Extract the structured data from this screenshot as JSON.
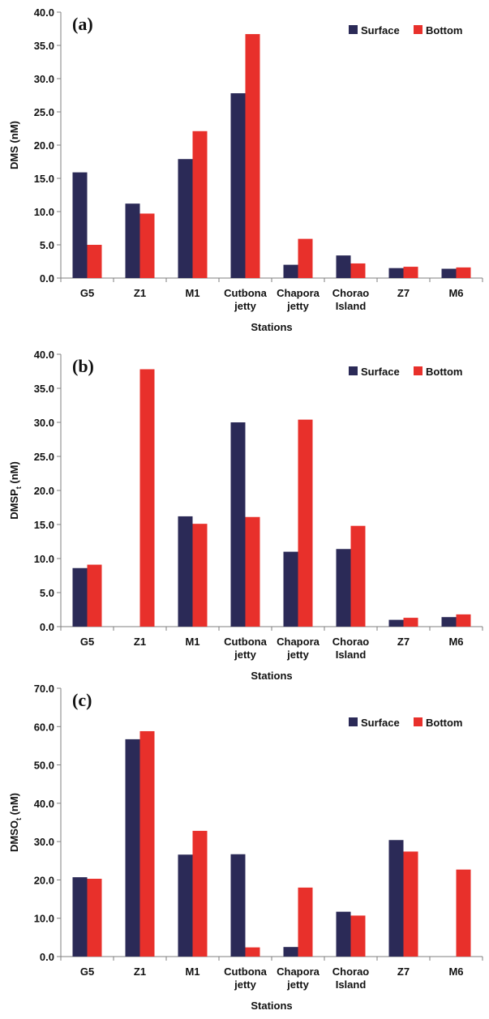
{
  "colors": {
    "surface": "#2b2a57",
    "bottom": "#e8302b"
  },
  "chart_data": [
    {
      "type": "bar",
      "panel_label": "(a)",
      "ylabel": "DMS (nM)",
      "ylabel_sub": "",
      "xlabel": "Stations",
      "ylim": [
        0,
        40
      ],
      "yticks": [
        "0.0",
        "5.0",
        "10.0",
        "15.0",
        "20.0",
        "25.0",
        "30.0",
        "35.0",
        "40.0"
      ],
      "categories": [
        [
          "G5"
        ],
        [
          "Z1"
        ],
        [
          "M1"
        ],
        [
          "Cutbona",
          "jetty"
        ],
        [
          "Chapora",
          "jetty"
        ],
        [
          "Chorao",
          "Island"
        ],
        [
          "Z7"
        ],
        [
          "M6"
        ]
      ],
      "series": [
        {
          "name": "Surface",
          "values": [
            15.9,
            11.2,
            17.9,
            27.8,
            2.0,
            3.4,
            1.5,
            1.4
          ]
        },
        {
          "name": "Bottom",
          "values": [
            5.0,
            9.7,
            22.1,
            36.7,
            5.9,
            2.2,
            1.7,
            1.6
          ]
        }
      ],
      "legend_position": "top-right"
    },
    {
      "type": "bar",
      "panel_label": "(b)",
      "ylabel": "DMSP",
      "ylabel_sub": "t",
      "ylabel_suffix": " (nM)",
      "xlabel": "Stations",
      "ylim": [
        0,
        40
      ],
      "yticks": [
        "0.0",
        "5.0",
        "10.0",
        "15.0",
        "20.0",
        "25.0",
        "30.0",
        "35.0",
        "40.0"
      ],
      "categories": [
        [
          "G5"
        ],
        [
          "Z1"
        ],
        [
          "M1"
        ],
        [
          "Cutbona",
          "jetty"
        ],
        [
          "Chapora",
          "jetty"
        ],
        [
          "Chorao",
          "Island"
        ],
        [
          "Z7"
        ],
        [
          "M6"
        ]
      ],
      "series": [
        {
          "name": "Surface",
          "values": [
            8.6,
            0.0,
            16.2,
            30.0,
            11.0,
            11.4,
            1.0,
            1.4
          ]
        },
        {
          "name": "Bottom",
          "values": [
            9.1,
            37.8,
            15.1,
            16.1,
            30.4,
            14.8,
            1.3,
            1.8
          ]
        }
      ],
      "legend_position": "top-right"
    },
    {
      "type": "bar",
      "panel_label": "(c)",
      "ylabel": "DMSO",
      "ylabel_sub": "t",
      "ylabel_suffix": " (nM)",
      "xlabel": "Stations",
      "ylim": [
        0,
        70
      ],
      "yticks": [
        "0.0",
        "10.0",
        "20.0",
        "30.0",
        "40.0",
        "50.0",
        "60.0",
        "70.0"
      ],
      "categories": [
        [
          "G5"
        ],
        [
          "Z1"
        ],
        [
          "M1"
        ],
        [
          "Cutbona",
          "jetty"
        ],
        [
          "Chapora",
          "jetty"
        ],
        [
          "Chorao",
          "Island"
        ],
        [
          "Z7"
        ],
        [
          "M6"
        ]
      ],
      "series": [
        {
          "name": "Surface",
          "values": [
            20.7,
            56.7,
            26.6,
            26.7,
            2.5,
            11.7,
            30.4,
            0.0
          ]
        },
        {
          "name": "Bottom",
          "values": [
            20.3,
            58.8,
            32.8,
            2.4,
            18.0,
            10.7,
            27.4,
            22.7
          ]
        }
      ],
      "legend_position": "top-right"
    }
  ]
}
